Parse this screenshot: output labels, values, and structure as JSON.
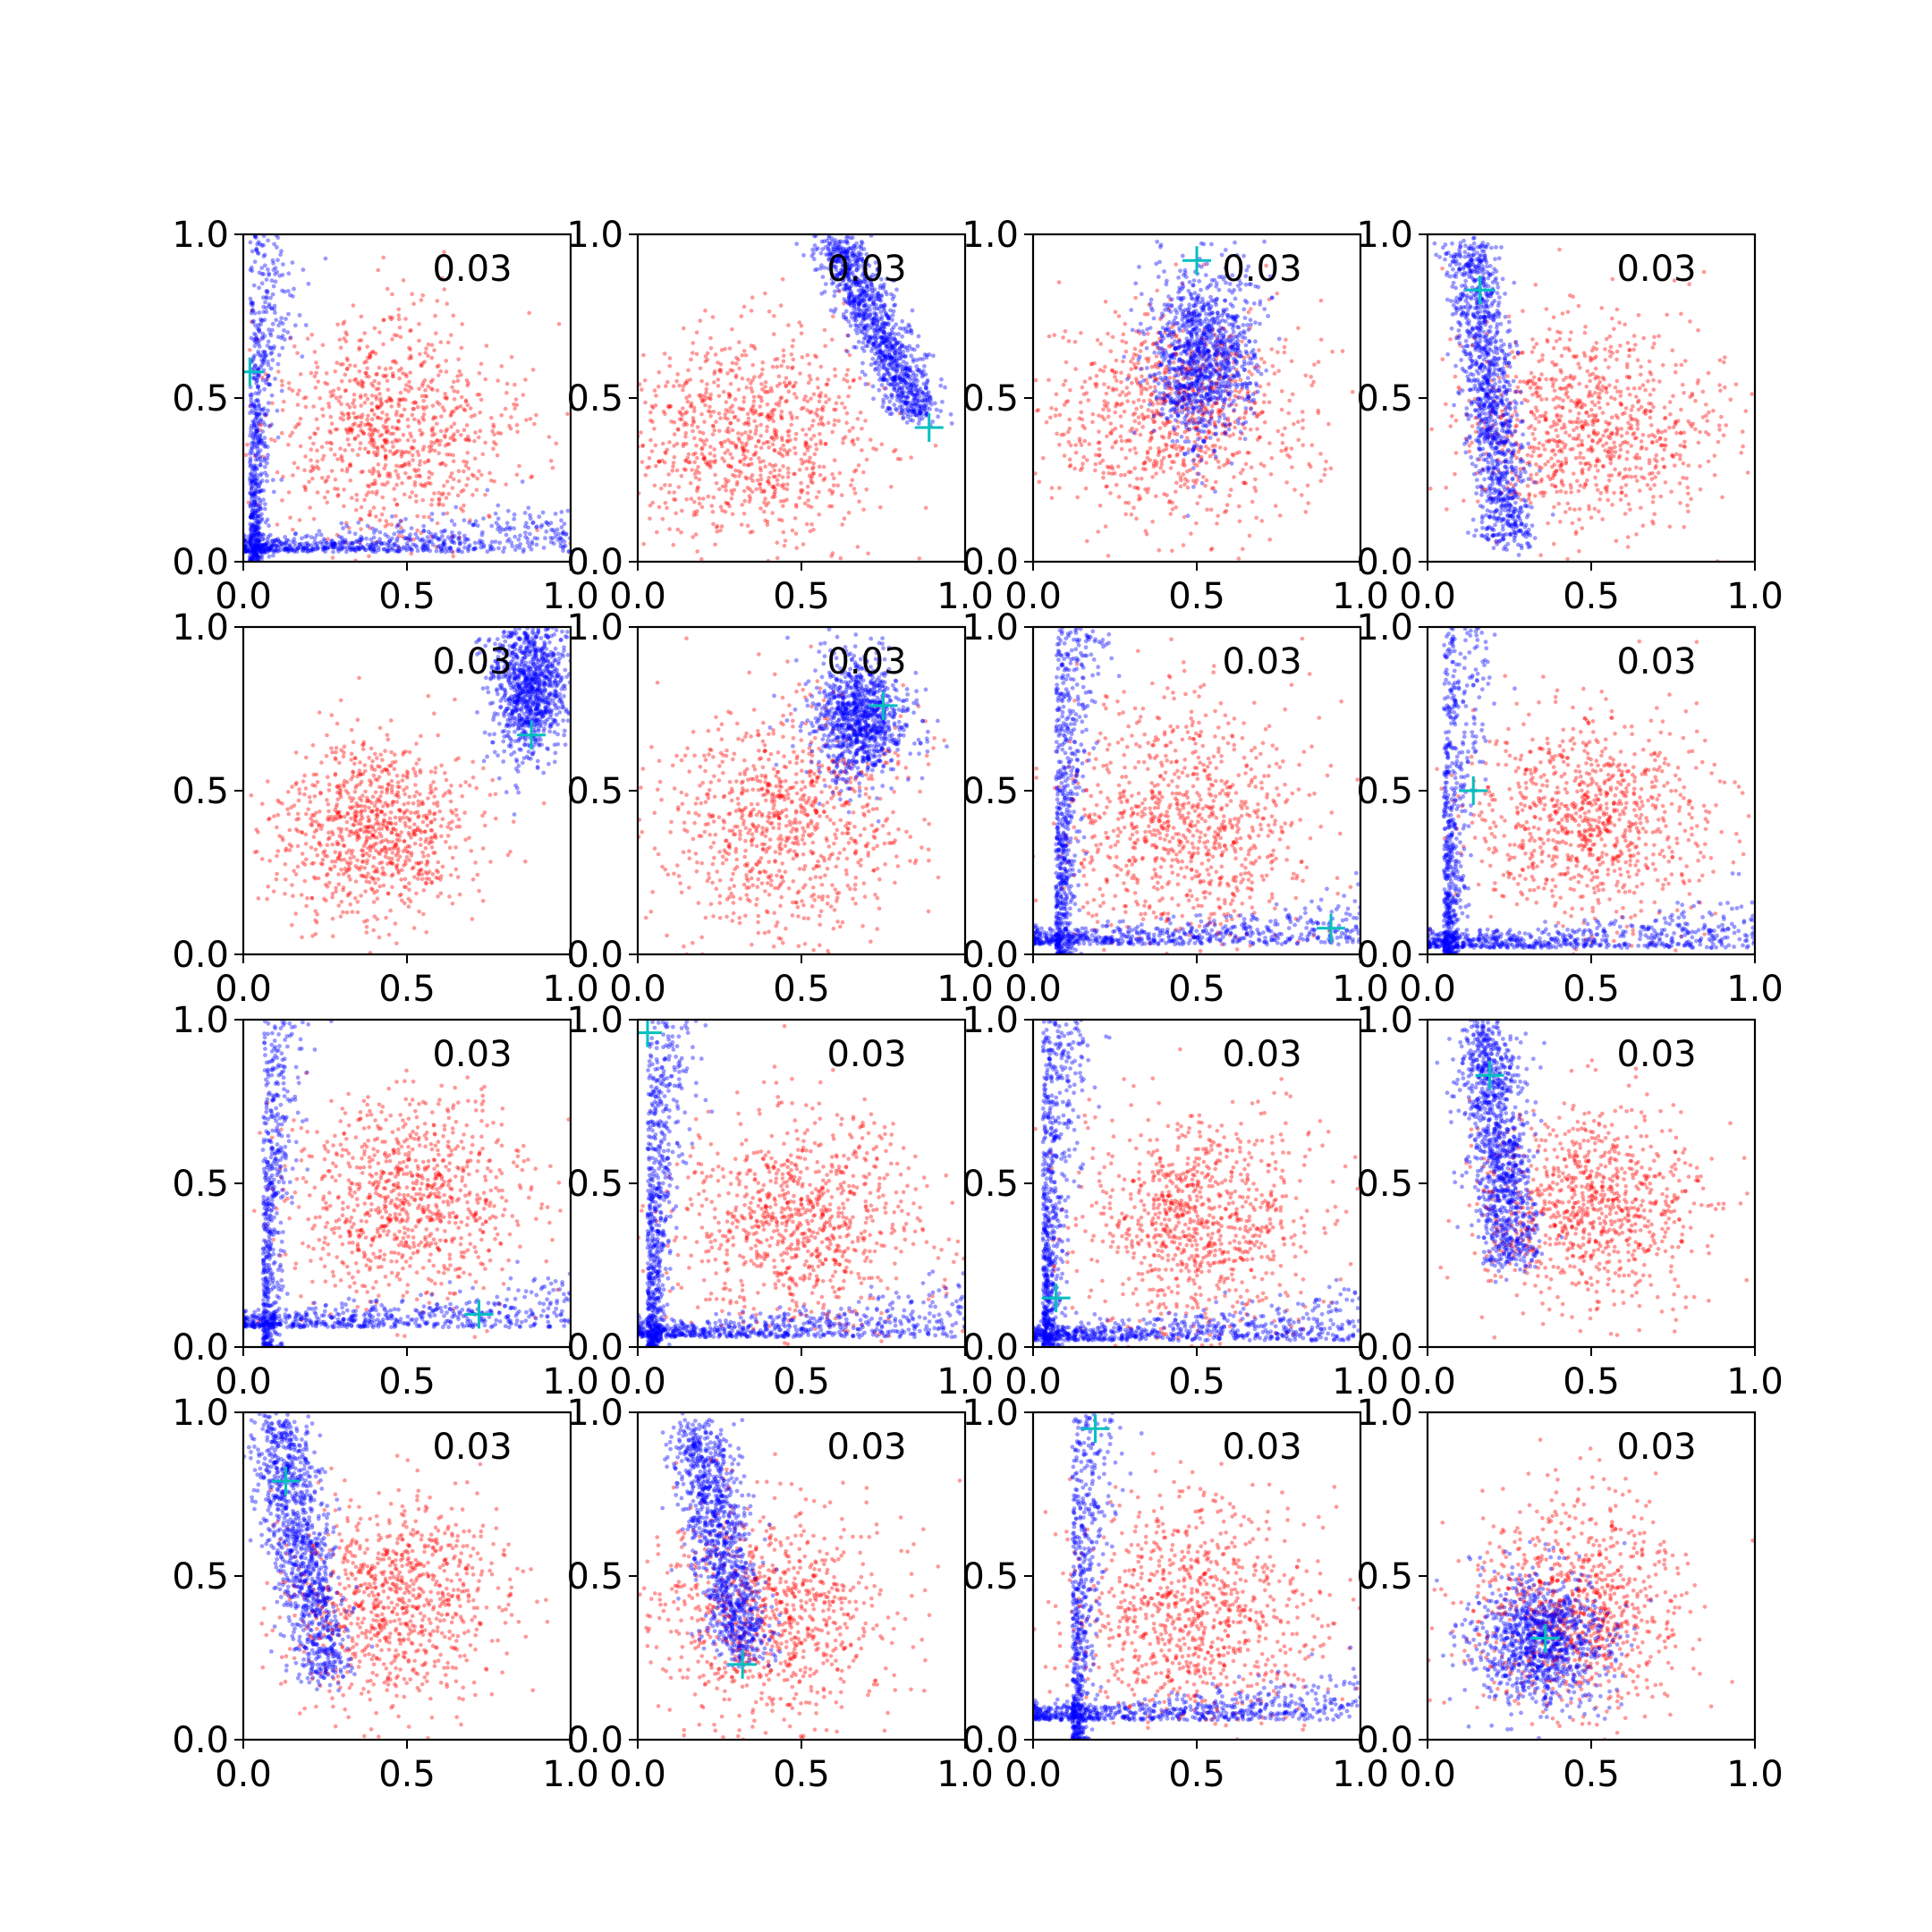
{
  "colors": {
    "series_blue": "#0000ff",
    "series_red": "#ff0000",
    "marker": "#00bfbf",
    "axes": "#000000",
    "background": "#ffffff"
  },
  "chart_data": {
    "type": "scatter",
    "layout": "4x4 grid of small-multiple scatter plots",
    "marker_style": "cyan plus marker, one per panel",
    "point_opacity": 0.4,
    "xlim": [
      0.0,
      1.0
    ],
    "ylim": [
      0.0,
      1.0
    ],
    "x_ticks": [
      "0.0",
      "0.5",
      "1.0"
    ],
    "y_ticks": [
      "0.0",
      "0.5",
      "1.0"
    ],
    "grid": false,
    "legend": "none",
    "panels": [
      {
        "annotation": "0.03",
        "marker": [
          0.02,
          0.58
        ],
        "red": {
          "kind": "blob",
          "center": [
            0.45,
            0.4
          ],
          "spread": [
            0.19,
            0.18
          ],
          "n": 900
        },
        "blue": {
          "kind": "lcurve",
          "a": 0.02,
          "b": 0.03,
          "n": 1300
        }
      },
      {
        "annotation": "0.03",
        "marker": [
          0.89,
          0.41
        ],
        "red": {
          "kind": "blob",
          "center": [
            0.35,
            0.37
          ],
          "spread": [
            0.19,
            0.16
          ],
          "n": 900
        },
        "blue": {
          "kind": "band",
          "p0": [
            0.6,
            0.98
          ],
          "p1": [
            0.86,
            0.45
          ],
          "width": 0.07,
          "n": 1100
        }
      },
      {
        "annotation": "0.03",
        "marker": [
          0.5,
          0.92
        ],
        "red": {
          "kind": "blob",
          "center": [
            0.45,
            0.45
          ],
          "spread": [
            0.2,
            0.17
          ],
          "n": 900
        },
        "blue": {
          "kind": "blob",
          "center": [
            0.52,
            0.63
          ],
          "spread": [
            0.08,
            0.13
          ],
          "n": 1100
        }
      },
      {
        "annotation": "0.03",
        "marker": [
          0.16,
          0.83
        ],
        "red": {
          "kind": "blob",
          "center": [
            0.5,
            0.42
          ],
          "spread": [
            0.2,
            0.16
          ],
          "n": 900
        },
        "blue": {
          "kind": "band",
          "p0": [
            0.13,
            0.98
          ],
          "p1": [
            0.25,
            0.05
          ],
          "width": 0.07,
          "n": 1200
        }
      },
      {
        "annotation": "0.03",
        "marker": [
          0.88,
          0.67
        ],
        "red": {
          "kind": "blob",
          "center": [
            0.4,
            0.38
          ],
          "spread": [
            0.15,
            0.14
          ],
          "n": 900
        },
        "blue": {
          "kind": "blob",
          "center": [
            0.87,
            0.82
          ],
          "spread": [
            0.06,
            0.11
          ],
          "n": 1000
        }
      },
      {
        "annotation": "0.03",
        "marker": [
          0.75,
          0.76
        ],
        "red": {
          "kind": "blob",
          "center": [
            0.45,
            0.4
          ],
          "spread": [
            0.19,
            0.19
          ],
          "n": 900
        },
        "blue": {
          "kind": "blob",
          "center": [
            0.68,
            0.72
          ],
          "spread": [
            0.07,
            0.09
          ],
          "n": 1000
        }
      },
      {
        "annotation": "0.03",
        "marker": [
          0.91,
          0.08
        ],
        "red": {
          "kind": "blob",
          "center": [
            0.47,
            0.4
          ],
          "spread": [
            0.19,
            0.19
          ],
          "n": 900
        },
        "blue": {
          "kind": "lcurve",
          "a": 0.07,
          "b": 0.03,
          "n": 1200
        }
      },
      {
        "annotation": "0.03",
        "marker": [
          0.14,
          0.5
        ],
        "red": {
          "kind": "blob",
          "center": [
            0.5,
            0.42
          ],
          "spread": [
            0.18,
            0.15
          ],
          "n": 900
        },
        "blue": {
          "kind": "lcurve",
          "a": 0.05,
          "b": 0.02,
          "n": 1200
        }
      },
      {
        "annotation": "0.03",
        "marker": [
          0.72,
          0.1
        ],
        "red": {
          "kind": "blob",
          "center": [
            0.5,
            0.45
          ],
          "spread": [
            0.18,
            0.16
          ],
          "n": 900
        },
        "blue": {
          "kind": "lcurve",
          "a": 0.06,
          "b": 0.06,
          "n": 1100
        }
      },
      {
        "annotation": "0.03",
        "marker": [
          0.03,
          0.96
        ],
        "red": {
          "kind": "blob",
          "center": [
            0.5,
            0.38
          ],
          "spread": [
            0.19,
            0.17
          ],
          "n": 900
        },
        "blue": {
          "kind": "lcurve",
          "a": 0.03,
          "b": 0.03,
          "n": 1300
        }
      },
      {
        "annotation": "0.03",
        "marker": [
          0.07,
          0.15
        ],
        "red": {
          "kind": "blob",
          "center": [
            0.5,
            0.38
          ],
          "spread": [
            0.18,
            0.17
          ],
          "n": 900
        },
        "blue": {
          "kind": "lcurve",
          "a": 0.03,
          "b": 0.02,
          "n": 1300
        }
      },
      {
        "annotation": "0.03",
        "marker": [
          0.19,
          0.83
        ],
        "red": {
          "kind": "blob",
          "center": [
            0.5,
            0.42
          ],
          "spread": [
            0.18,
            0.15
          ],
          "n": 900
        },
        "blue": {
          "kind": "band",
          "p0": [
            0.17,
            0.98
          ],
          "p1": [
            0.26,
            0.25
          ],
          "width": 0.08,
          "n": 1100
        }
      },
      {
        "annotation": "0.03",
        "marker": [
          0.13,
          0.79
        ],
        "red": {
          "kind": "blob",
          "center": [
            0.45,
            0.42
          ],
          "spread": [
            0.17,
            0.16
          ],
          "n": 900
        },
        "blue": {
          "kind": "band",
          "p0": [
            0.1,
            0.98
          ],
          "p1": [
            0.26,
            0.18
          ],
          "width": 0.08,
          "n": 1100
        }
      },
      {
        "annotation": "0.03",
        "marker": [
          0.32,
          0.23
        ],
        "red": {
          "kind": "blob",
          "center": [
            0.4,
            0.38
          ],
          "spread": [
            0.18,
            0.17
          ],
          "n": 900
        },
        "blue": {
          "kind": "band",
          "p0": [
            0.18,
            0.95
          ],
          "p1": [
            0.33,
            0.25
          ],
          "width": 0.08,
          "n": 1100
        }
      },
      {
        "annotation": "0.03",
        "marker": [
          0.19,
          0.95
        ],
        "red": {
          "kind": "blob",
          "center": [
            0.5,
            0.38
          ],
          "spread": [
            0.19,
            0.18
          ],
          "n": 900
        },
        "blue": {
          "kind": "lcurve",
          "a": 0.12,
          "b": 0.06,
          "n": 1200
        }
      },
      {
        "annotation": "0.03",
        "marker": [
          0.36,
          0.31
        ],
        "red": {
          "kind": "blob",
          "center": [
            0.45,
            0.4
          ],
          "spread": [
            0.16,
            0.16
          ],
          "n": 900
        },
        "blue": {
          "kind": "blob",
          "center": [
            0.35,
            0.3
          ],
          "spread": [
            0.1,
            0.1
          ],
          "n": 1000
        }
      }
    ]
  }
}
